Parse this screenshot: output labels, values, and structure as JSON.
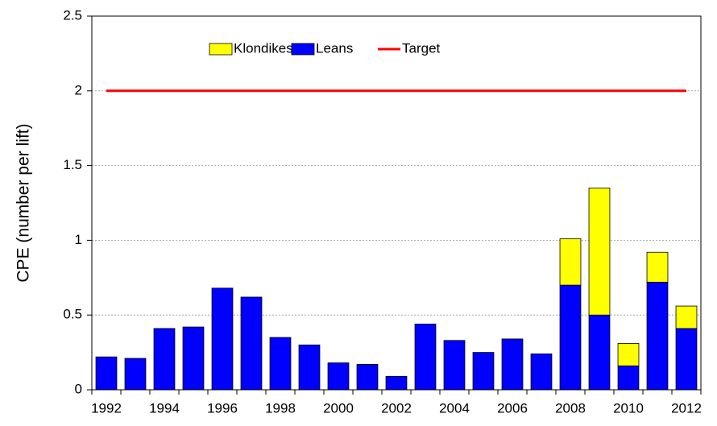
{
  "chart_data": {
    "type": "bar",
    "stacked": true,
    "ylabel": "CPE (number per lift)",
    "categories": [
      "1992",
      null,
      "1994",
      null,
      "1996",
      null,
      "1998",
      null,
      "2000",
      null,
      "2002",
      null,
      "2004",
      null,
      "2006",
      null,
      "2008",
      null,
      "2010",
      null,
      "2012"
    ],
    "series": [
      {
        "name": "Klondikes",
        "color": "#ffff00",
        "type": "bar",
        "values": [
          0,
          0,
          0,
          0,
          0,
          0,
          0,
          0,
          0,
          0,
          0,
          0,
          0,
          0,
          0,
          0,
          0.31,
          0.85,
          0.15,
          0.2,
          0.15
        ]
      },
      {
        "name": "Leans",
        "color": "#0000ff",
        "type": "bar",
        "values": [
          0.22,
          0.21,
          0.41,
          0.42,
          0.68,
          0.62,
          0.35,
          0.3,
          0.18,
          0.17,
          0.09,
          0.44,
          0.33,
          0.25,
          0.34,
          0.24,
          0.7,
          0.5,
          0.16,
          0.72,
          0.41
        ]
      },
      {
        "name": "Target",
        "color": "#ff0000",
        "type": "line",
        "values": [
          2,
          2,
          2,
          2,
          2,
          2,
          2,
          2,
          2,
          2,
          2,
          2,
          2,
          2,
          2,
          2,
          2,
          2,
          2,
          2,
          2
        ]
      }
    ],
    "ylim": [
      0,
      2.5
    ],
    "yticks": [
      0,
      0.5,
      1,
      1.5,
      2,
      2.5
    ],
    "grid": true,
    "legend": "top"
  }
}
